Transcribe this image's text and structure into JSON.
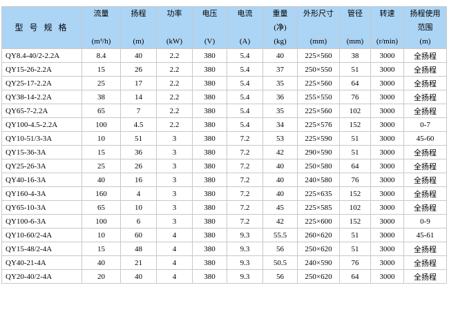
{
  "headers": [
    {
      "lines": [
        "型 号 规 格"
      ]
    },
    {
      "lines": [
        "流量",
        "",
        "(m³/h)"
      ]
    },
    {
      "lines": [
        "扬程",
        "",
        "(m)"
      ]
    },
    {
      "lines": [
        "功率",
        "",
        "(kW)"
      ]
    },
    {
      "lines": [
        "电压",
        "",
        "(V)"
      ]
    },
    {
      "lines": [
        "电流",
        "",
        "(A)"
      ]
    },
    {
      "lines": [
        "重量",
        "(净)",
        "(kg)"
      ]
    },
    {
      "lines": [
        "外形尺寸",
        "",
        "(mm)"
      ]
    },
    {
      "lines": [
        "管径",
        "",
        "(mm)"
      ]
    },
    {
      "lines": [
        "转速",
        "",
        "(r/min)"
      ]
    },
    {
      "lines": [
        "扬程使用",
        "范围",
        "(m)"
      ]
    }
  ],
  "rows": [
    [
      "QY8.4-40/2-2.2A",
      "8.4",
      "40",
      "2.2",
      "380",
      "5.4",
      "40",
      "225×560",
      "38",
      "3000",
      "全扬程"
    ],
    [
      "QY15-26-2.2A",
      "15",
      "26",
      "2.2",
      "380",
      "5.4",
      "37",
      "250×550",
      "51",
      "3000",
      "全扬程"
    ],
    [
      "QY25-17-2.2A",
      "25",
      "17",
      "2.2",
      "380",
      "5.4",
      "35",
      "225×560",
      "64",
      "3000",
      "全扬程"
    ],
    [
      "QY38-14-2.2A",
      "38",
      "14",
      "2.2",
      "380",
      "5.4",
      "36",
      "255×550",
      "76",
      "3000",
      "全扬程"
    ],
    [
      "QY65-7-2.2A",
      "65",
      "7",
      "2.2",
      "380",
      "5.4",
      "35",
      "225×560",
      "102",
      "3000",
      "全扬程"
    ],
    [
      "QY100-4.5-2.2A",
      "100",
      "4.5",
      "2.2",
      "380",
      "5.4",
      "34",
      "225×576",
      "152",
      "3000",
      "0-7"
    ],
    [
      "QY10-51/3-3A",
      "10",
      "51",
      "3",
      "380",
      "7.2",
      "53",
      "225×590",
      "51",
      "3000",
      "45-60"
    ],
    [
      "QY15-36-3A",
      "15",
      "36",
      "3",
      "380",
      "7.2",
      "42",
      "290×590",
      "51",
      "3000",
      "全扬程"
    ],
    [
      "QY25-26-3A",
      "25",
      "26",
      "3",
      "380",
      "7.2",
      "40",
      "250×580",
      "64",
      "3000",
      "全扬程"
    ],
    [
      "QY40-16-3A",
      "40",
      "16",
      "3",
      "380",
      "7.2",
      "40",
      "240×580",
      "76",
      "3000",
      "全扬程"
    ],
    [
      "QY160-4-3A",
      "160",
      "4",
      "3",
      "380",
      "7.2",
      "40",
      "225×635",
      "152",
      "3000",
      "全扬程"
    ],
    [
      "QY65-10-3A",
      "65",
      "10",
      "3",
      "380",
      "7.2",
      "45",
      "225×585",
      "102",
      "3000",
      "全扬程"
    ],
    [
      "QY100-6-3A",
      "100",
      "6",
      "3",
      "380",
      "7.2",
      "42",
      "225×600",
      "152",
      "3000",
      "0-9"
    ],
    [
      "QY10-60/2-4A",
      "10",
      "60",
      "4",
      "380",
      "9.3",
      "55.5",
      "260×620",
      "51",
      "3000",
      "45-61"
    ],
    [
      "QY15-48/2-4A",
      "15",
      "48",
      "4",
      "380",
      "9.3",
      "56",
      "250×620",
      "51",
      "3000",
      "全扬程"
    ],
    [
      "QY40-21-4A",
      "40",
      "21",
      "4",
      "380",
      "9.3",
      "50.5",
      "240×590",
      "76",
      "3000",
      "全扬程"
    ],
    [
      "QY20-40/2-4A",
      "20",
      "40",
      "4",
      "380",
      "9.3",
      "56",
      "250×620",
      "64",
      "3000",
      "全扬程"
    ]
  ],
  "colors": {
    "header_bg": "#acd4f5",
    "border": "#c8c8c8"
  }
}
